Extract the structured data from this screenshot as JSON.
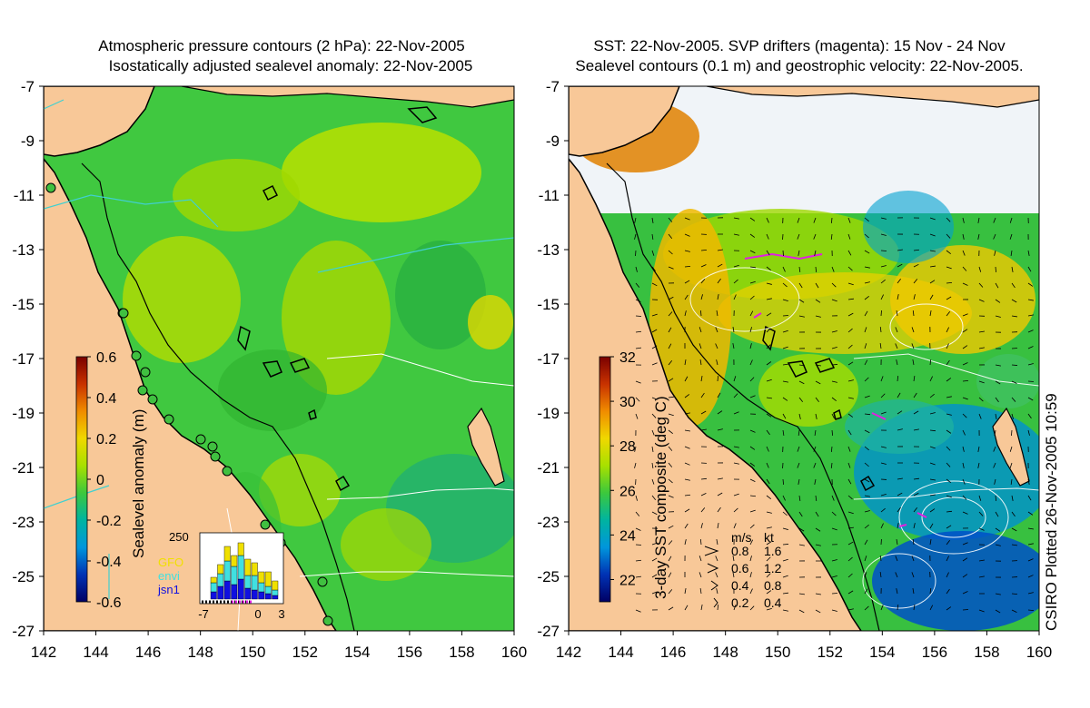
{
  "left_panel": {
    "title_line1": "Atmospheric pressure contours (2 hPa): 22-Nov-2005",
    "title_line2": "Isostatically adjusted sealevel anomaly: 22-Nov-2005",
    "colorbar": {
      "label": "Sealevel anomaly (m)",
      "ticks": [
        "0.6",
        "0.4",
        "0.2",
        "0",
        "-0.2",
        "-0.4",
        "-0.6"
      ],
      "range": [
        -0.6,
        0.6
      ],
      "colors": [
        "#7a0000",
        "#c83200",
        "#f08c00",
        "#f0d800",
        "#a8e000",
        "#3cc83c",
        "#00b4a0",
        "#0096dc",
        "#0032b4",
        "#000064"
      ]
    },
    "inset": {
      "ymax_label": "250",
      "legend": [
        {
          "name": "GFO",
          "color": "#f0e000"
        },
        {
          "name": "envi",
          "color": "#40e0e0"
        },
        {
          "name": "jsn1",
          "color": "#1010e0"
        }
      ],
      "xticks": [
        "-7",
        "0",
        "3"
      ]
    }
  },
  "right_panel": {
    "title_line1": "SST: 22-Nov-2005. SVP drifters (magenta): 15 Nov - 24 Nov",
    "title_line2": "Sealevel contours (0.1 m) and geostrophic velocity: 22-Nov-2005.",
    "colorbar": {
      "label": "3-day SST composite (deg C)",
      "ticks": [
        "32",
        "30",
        "28",
        "26",
        "24",
        "22"
      ],
      "range": [
        21,
        32
      ],
      "colors": [
        "#7a0000",
        "#c83200",
        "#f08c00",
        "#f0d800",
        "#a8e000",
        "#3cc83c",
        "#00b4a0",
        "#0096dc",
        "#0032b4",
        "#000064"
      ]
    },
    "velocity_legend": {
      "header_ms": "m/s",
      "header_kt": "kt",
      "rows": [
        {
          "ms": "0.8",
          "kt": "1.6"
        },
        {
          "ms": "0.6",
          "kt": "1.2"
        },
        {
          "ms": "0.4",
          "kt": "0.8"
        },
        {
          "ms": "0.2",
          "kt": "0.4"
        }
      ]
    }
  },
  "axes": {
    "y_ticks": [
      "-7",
      "-9",
      "-11",
      "-13",
      "-15",
      "-17",
      "-19",
      "-21",
      "-23",
      "-25",
      "-27"
    ],
    "x_ticks": [
      "142",
      "144",
      "146",
      "148",
      "150",
      "152",
      "154",
      "156",
      "158",
      "160"
    ],
    "lon_range": [
      142,
      160
    ],
    "lat_range": [
      -27,
      -7
    ]
  },
  "footer": "CSIRO Plotted 26-Nov-2005 10:59",
  "colors": {
    "land": "#f8c898",
    "coast": "#000000",
    "pressure_contour": "#40d0d0",
    "sealevel_contour": "#ffffff",
    "drifter": "#e020e0",
    "ocean_green": "#38c838"
  }
}
